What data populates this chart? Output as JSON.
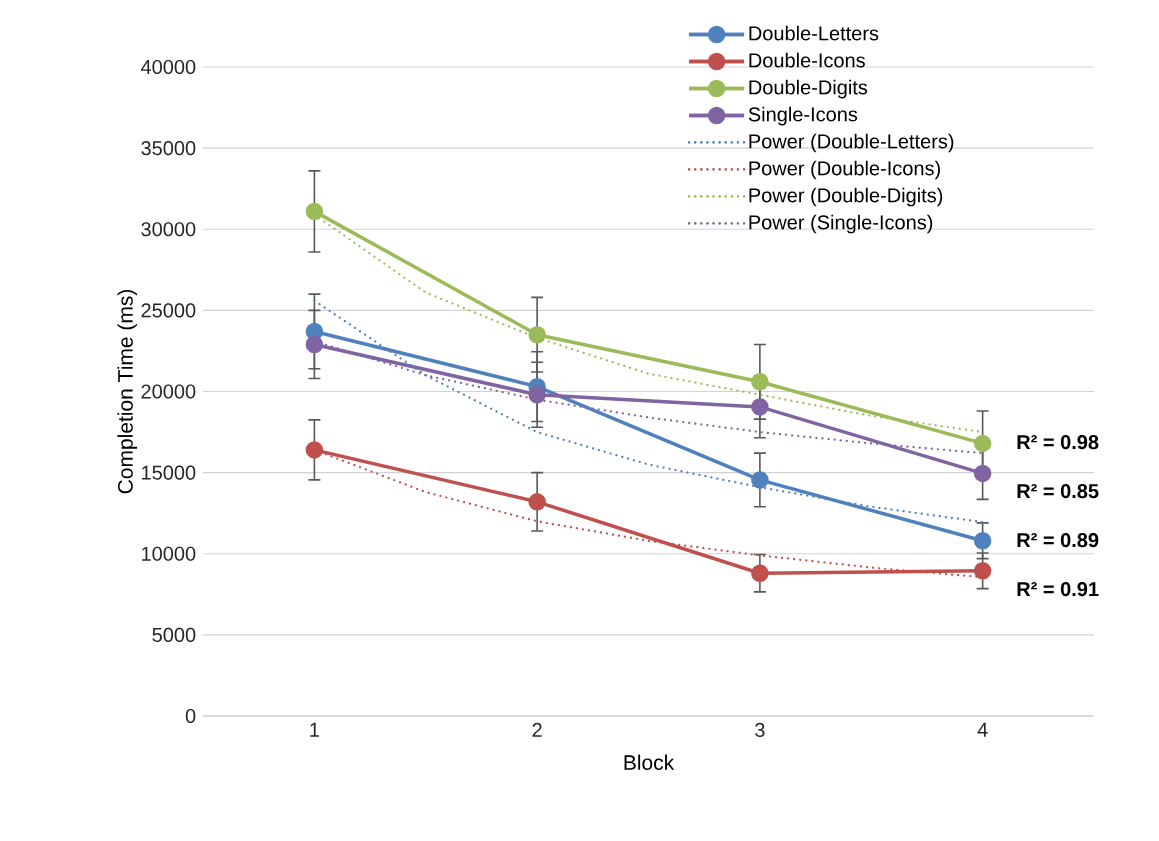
{
  "chart_data": {
    "type": "line",
    "xlabel": "Block",
    "ylabel": "Completion Time (ms)",
    "x": [
      1,
      2,
      3,
      4
    ],
    "xlim": [
      0.5,
      4.5
    ],
    "xticks": [
      1,
      2,
      3,
      4
    ],
    "ylim": [
      0,
      40000
    ],
    "yticks": [
      0,
      5000,
      10000,
      15000,
      20000,
      25000,
      30000,
      35000,
      40000
    ],
    "grid": "y",
    "legend": "top right",
    "marker": "circle",
    "line_style": "solid",
    "series": [
      {
        "name": "Double-Letters",
        "color": "#4f81bd",
        "values": [
          23700,
          20300,
          14550,
          10800
        ],
        "errors": [
          2300,
          2150,
          1650,
          1100
        ]
      },
      {
        "name": "Double-Icons",
        "color": "#c0504d",
        "values": [
          16400,
          13200,
          8800,
          8950
        ],
        "errors": [
          1850,
          1800,
          1150,
          1100
        ]
      },
      {
        "name": "Double-Digits",
        "color": "#9bbb59",
        "values": [
          31100,
          23500,
          20600,
          16800
        ],
        "errors": [
          2500,
          2300,
          2300,
          2000
        ]
      },
      {
        "name": "Single-Icons",
        "color": "#8064a2",
        "values": [
          22900,
          19800,
          19050,
          14950
        ],
        "errors": [
          2100,
          2000,
          1900,
          1600
        ]
      },
      {
        "name": "Power (Double-Letters)",
        "color": "#4f81bd",
        "type": "line",
        "marker": "none",
        "line_style": "dotted",
        "x": [
          1,
          1.5,
          2,
          2.5,
          3,
          3.5,
          4
        ],
        "values": [
          25600,
          21000,
          17500,
          15500,
          14100,
          12900,
          11950
        ]
      },
      {
        "name": "Power (Double-Icons)",
        "color": "#c0504d",
        "type": "line",
        "marker": "none",
        "line_style": "dotted",
        "x": [
          1,
          1.5,
          2,
          2.5,
          3,
          3.5,
          4
        ],
        "values": [
          16400,
          13800,
          12000,
          10800,
          9900,
          9150,
          8550
        ]
      },
      {
        "name": "Power (Double-Digits)",
        "color": "#9bbb59",
        "type": "line",
        "marker": "none",
        "line_style": "dotted",
        "x": [
          1,
          1.5,
          2,
          2.5,
          3,
          3.5,
          4
        ],
        "values": [
          30900,
          26100,
          23300,
          21100,
          19800,
          18500,
          17500
        ]
      },
      {
        "name": "Power (Single-Icons)",
        "color": "#8064a2",
        "type": "line",
        "marker": "none",
        "line_style": "dotted",
        "x": [
          1,
          1.5,
          2,
          2.5,
          3,
          3.5,
          4
        ],
        "values": [
          23100,
          21000,
          19500,
          18400,
          17500,
          16800,
          16200
        ]
      }
    ],
    "annotations": [
      "R² = 0.98",
      "R² = 0.85",
      "R² = 0.89",
      "R² = 0.91"
    ]
  }
}
